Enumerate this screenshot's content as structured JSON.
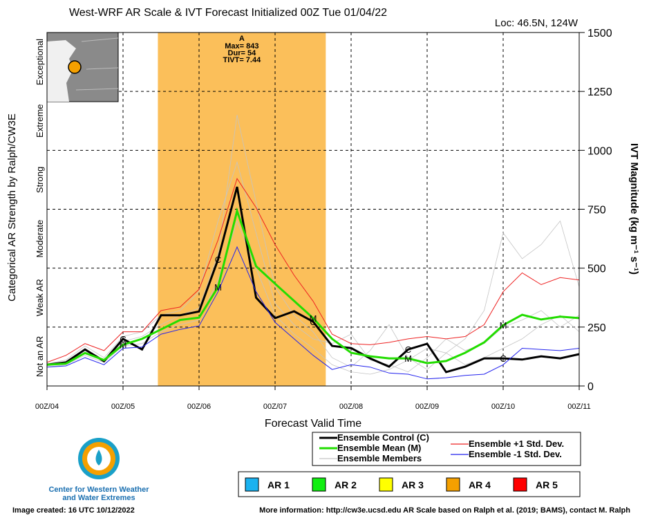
{
  "chart_data": {
    "type": "line",
    "title": "West-WRF AR Scale & IVT Forecast Initialized 00Z Tue 01/04/22",
    "location": "Loc: 46.5N, 124W",
    "x_label": "Forecast Valid Time",
    "y_label": "IVT Magnitude (kg m⁻¹ s⁻¹)",
    "left_label": "Categorical AR Strength by Ralph/CW3E",
    "ar_categories": [
      "Not an AR",
      "Weak AR",
      "Moderate",
      "Strong",
      "Extreme",
      "Exceptional"
    ],
    "x": [
      0,
      6,
      12,
      18,
      24,
      30,
      36,
      42,
      48,
      54,
      60,
      66,
      72,
      78,
      84,
      90,
      96,
      102,
      108,
      114,
      120,
      126,
      132,
      138,
      144,
      150,
      156,
      162,
      168
    ],
    "xlim": [
      0,
      168
    ],
    "xticks": [
      {
        "value": 0,
        "label": "00Z/04"
      },
      {
        "value": 24,
        "label": "00Z/05"
      },
      {
        "value": 48,
        "label": "00Z/06"
      },
      {
        "value": 72,
        "label": "00Z/07"
      },
      {
        "value": 96,
        "label": "00Z/08"
      },
      {
        "value": 120,
        "label": "00Z/09"
      },
      {
        "value": 144,
        "label": "00Z/10"
      },
      {
        "value": 168,
        "label": "00Z/11"
      }
    ],
    "ylim": [
      0,
      1500
    ],
    "yticks": [
      0,
      250,
      500,
      750,
      1000,
      1250,
      1500
    ],
    "grid": true,
    "ar_event": {
      "start": 35,
      "end": 88,
      "color": "#fbbf5a",
      "label": "A",
      "lines": [
        "Max= 843",
        "Dur= 54",
        "TIVT= 7.44"
      ]
    },
    "series": [
      {
        "name": "Ensemble Members",
        "color": "#c4c4c4",
        "members": [
          [
            85,
            95,
            150,
            100,
            190,
            210,
            260,
            300,
            330,
            560,
            1150,
            780,
            420,
            300,
            230,
            120,
            80,
            150,
            260,
            120,
            70,
            140,
            200,
            320,
            650,
            540,
            600,
            700,
            420
          ],
          [
            95,
            110,
            170,
            120,
            210,
            230,
            300,
            320,
            400,
            700,
            950,
            650,
            350,
            260,
            200,
            180,
            220,
            110,
            90,
            60,
            120,
            200,
            150,
            180,
            250,
            280,
            320,
            250,
            300
          ],
          [
            80,
            90,
            130,
            100,
            170,
            180,
            230,
            260,
            280,
            450,
            700,
            500,
            300,
            220,
            160,
            90,
            60,
            50,
            70,
            110,
            160,
            140,
            90,
            120,
            160,
            200,
            260,
            300,
            230
          ]
        ]
      },
      {
        "name": "Ensemble Control (C)",
        "letter": "C",
        "color": "#000000",
        "width": 3,
        "values": [
          90,
          100,
          155,
          105,
          200,
          155,
          300,
          300,
          316,
          537,
          845,
          375,
          288,
          317,
          273,
          170,
          161,
          117,
          82,
          155,
          179,
          59,
          82,
          117,
          117,
          112,
          126,
          117,
          135
        ]
      },
      {
        "name": "Ensemble Mean (M)",
        "letter": "M",
        "color": "#22dd00",
        "width": 3,
        "values": [
          90,
          95,
          140,
          110,
          175,
          200,
          240,
          280,
          290,
          420,
          743,
          508,
          434,
          361,
          288,
          200,
          141,
          126,
          117,
          117,
          97,
          106,
          141,
          185,
          258,
          302,
          282,
          294,
          288
        ]
      },
      {
        "name": "Ensemble +1 Std. Dev.",
        "color": "#ee2222",
        "width": 1,
        "values": [
          100,
          130,
          180,
          150,
          230,
          230,
          320,
          335,
          410,
          620,
          880,
          757,
          600,
          470,
          360,
          220,
          180,
          175,
          185,
          200,
          210,
          200,
          210,
          260,
          400,
          480,
          430,
          460,
          450
        ]
      },
      {
        "name": "Ensemble -1 Std. Dev.",
        "color": "#2222ee",
        "width": 1,
        "values": [
          80,
          85,
          120,
          90,
          160,
          165,
          220,
          240,
          255,
          400,
          590,
          400,
          270,
          200,
          130,
          70,
          90,
          80,
          55,
          50,
          30,
          35,
          45,
          50,
          90,
          160,
          155,
          150,
          160
        ]
      }
    ],
    "ar_legend": [
      {
        "label": "AR 1",
        "color": "#1ab2f0"
      },
      {
        "label": "AR 2",
        "color": "#11ee11"
      },
      {
        "label": "AR 3",
        "color": "#ffff00"
      },
      {
        "label": "AR 4",
        "color": "#f5a000"
      },
      {
        "label": "AR 5",
        "color": "#ff0000"
      }
    ],
    "logo_text": [
      "Center for Western Weather",
      "and Water Extremes"
    ],
    "footer_left": "Image created: 16 UTC 10/12/2022",
    "footer_right": "More information: http://cw3e.ucsd.edu  AR Scale based on Ralph et al. (2019; BAMS), contact M. Ralph"
  }
}
